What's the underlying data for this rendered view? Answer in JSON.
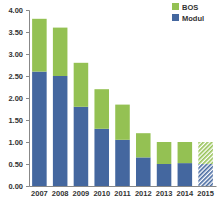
{
  "chart_data": {
    "type": "bar",
    "stacked": true,
    "legend": "top-right",
    "grid": false,
    "categories": [
      "2007",
      "2008",
      "2009",
      "2010",
      "2011",
      "2012",
      "2013",
      "2014",
      "2015"
    ],
    "series": [
      {
        "name": "Modul",
        "color": "#44679f",
        "values": [
          2.6,
          2.5,
          1.8,
          1.3,
          1.05,
          0.65,
          0.5,
          0.52,
          0.5
        ]
      },
      {
        "name": "BOS",
        "color": "#94c153",
        "values": [
          1.2,
          1.1,
          1.0,
          0.9,
          0.8,
          0.55,
          0.5,
          0.48,
          0.5
        ]
      }
    ],
    "ylim": [
      0,
      4
    ],
    "yticks": [
      {
        "value": 0,
        "label": "0.00"
      },
      {
        "value": 0.5,
        "label": "0.50"
      },
      {
        "value": 1,
        "label": "1.00"
      },
      {
        "value": 1.5,
        "label": "1.50"
      },
      {
        "value": 2,
        "label": "2.00"
      },
      {
        "value": 2.5,
        "label": "2.50"
      },
      {
        "value": 3,
        "label": "3.00"
      },
      {
        "value": 3.5,
        "label": "3.50"
      },
      {
        "value": 4,
        "label": "4.00"
      }
    ]
  }
}
